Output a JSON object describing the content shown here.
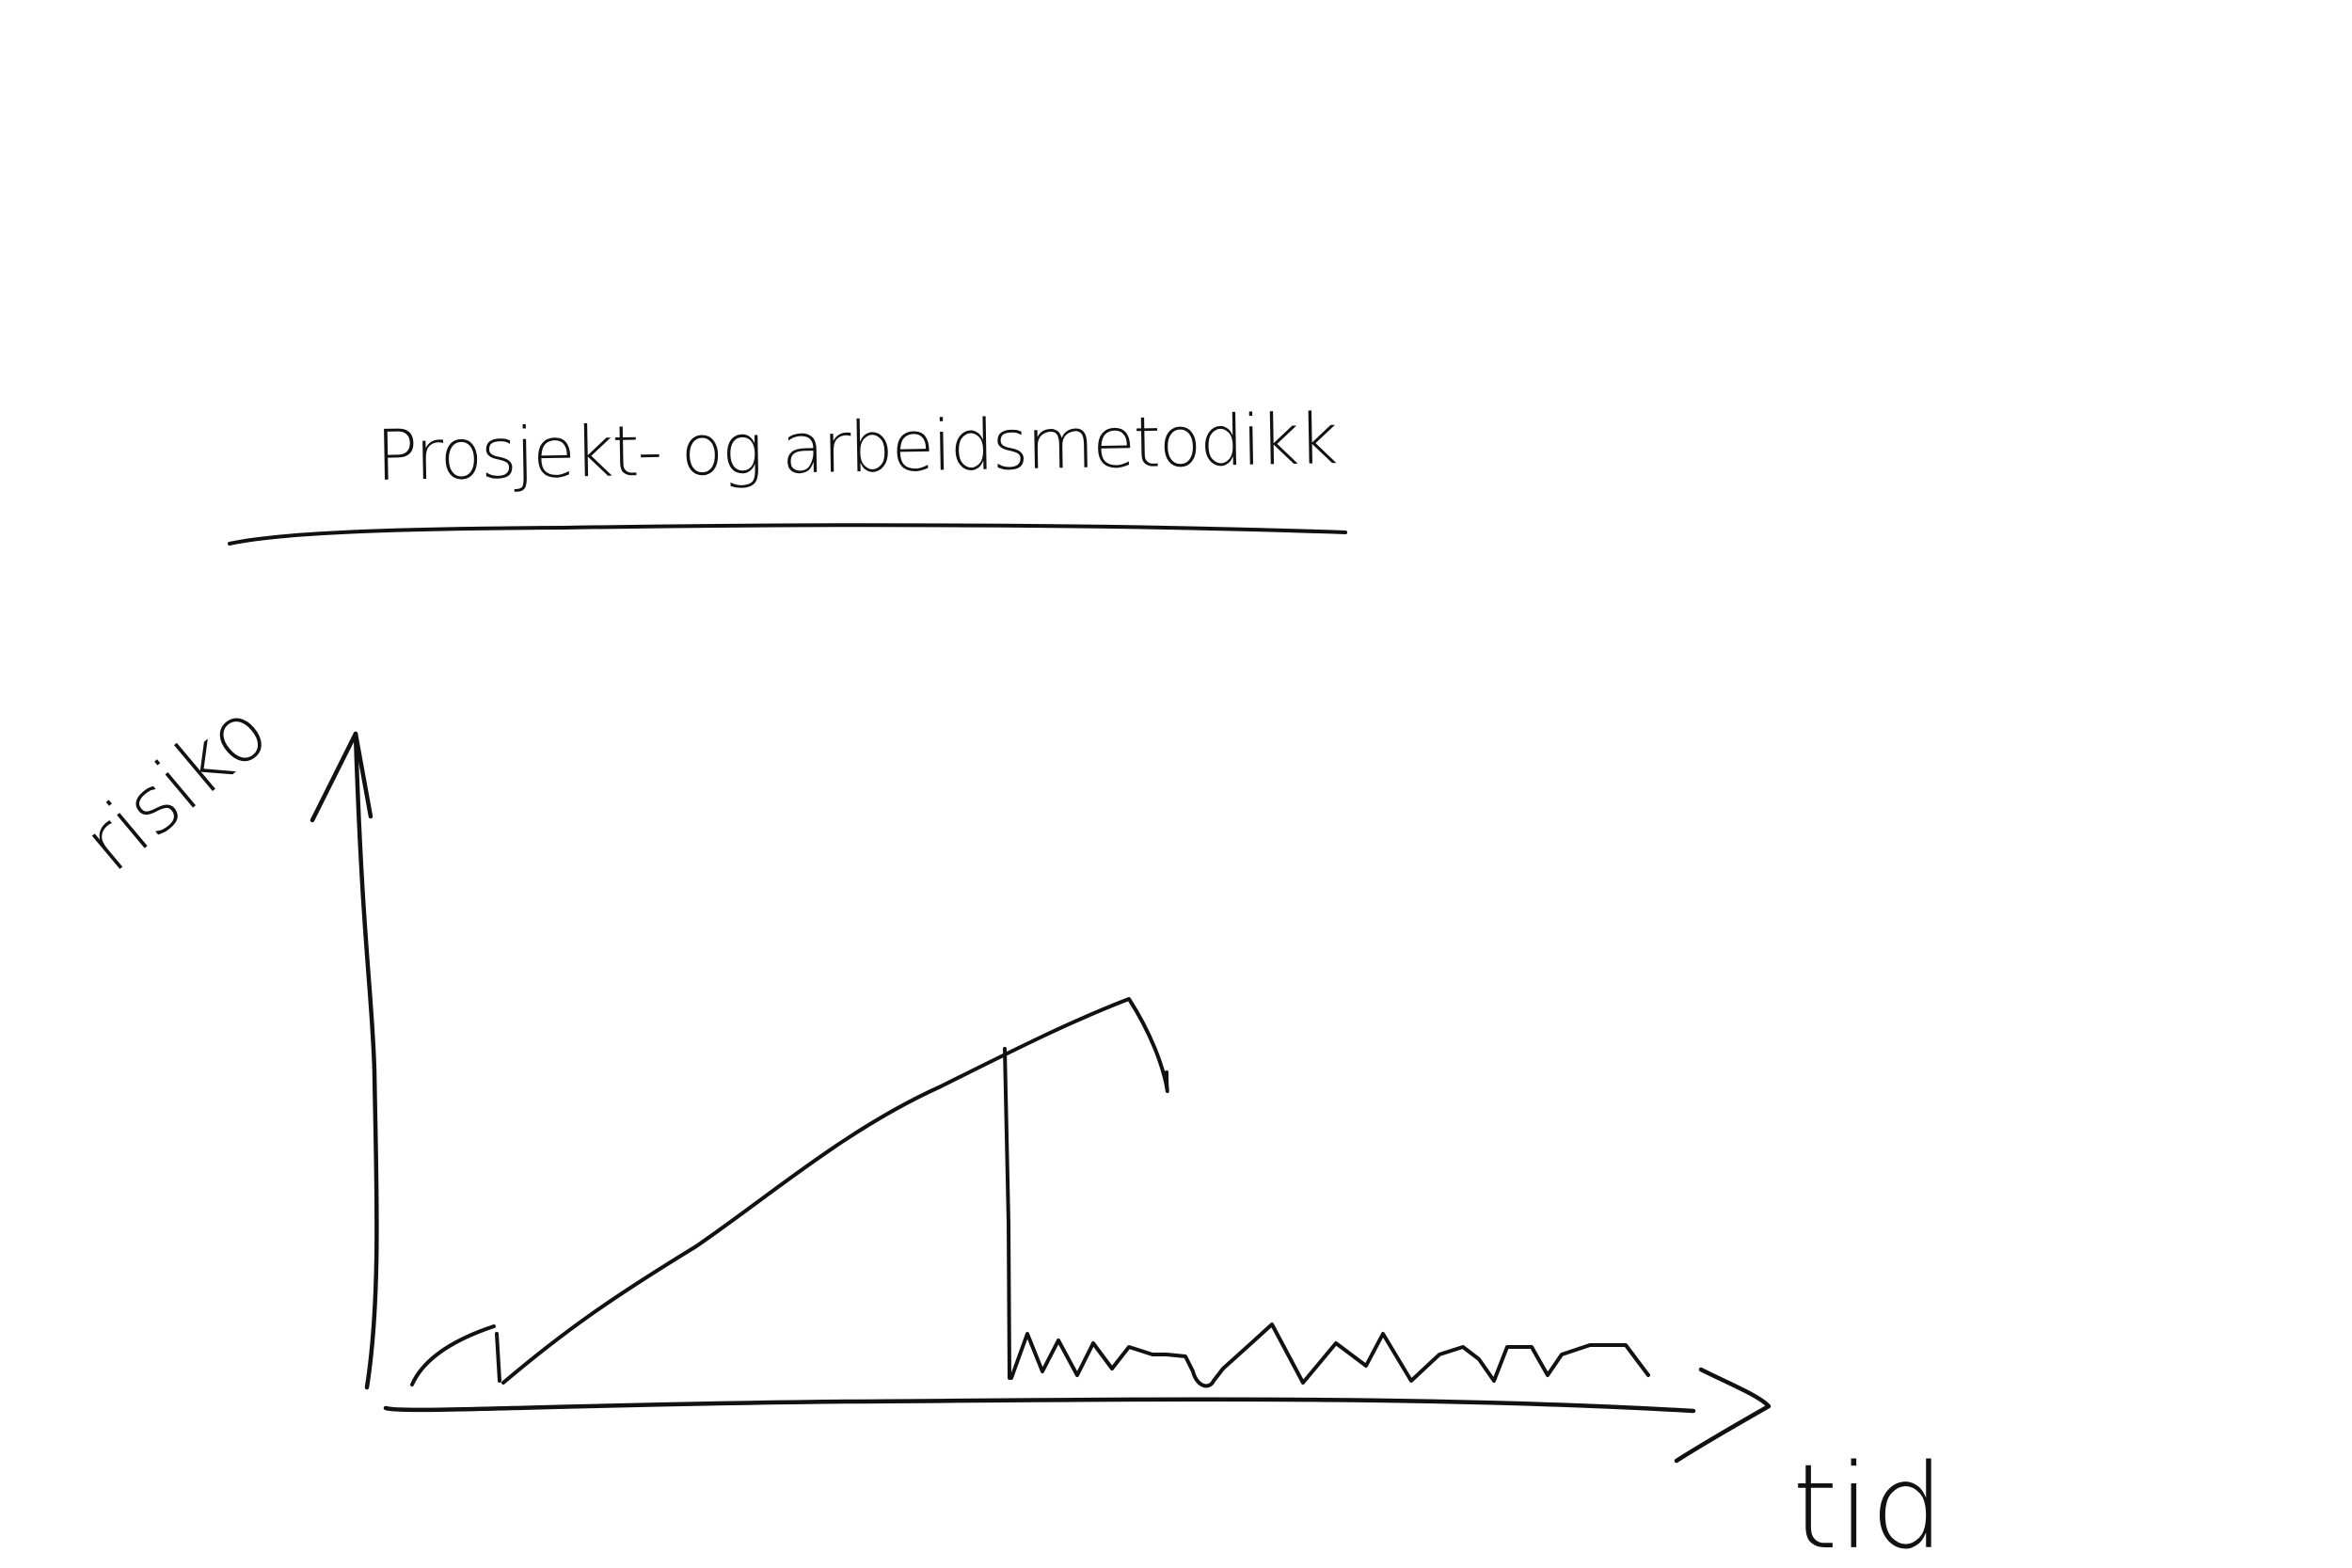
{
  "title": "Prosjekt- og arbeidsmetodikk",
  "y_axis_label": "risiko",
  "x_axis_label": "tid",
  "colors": {
    "ink": "#111111",
    "background": "#ffffff"
  }
}
